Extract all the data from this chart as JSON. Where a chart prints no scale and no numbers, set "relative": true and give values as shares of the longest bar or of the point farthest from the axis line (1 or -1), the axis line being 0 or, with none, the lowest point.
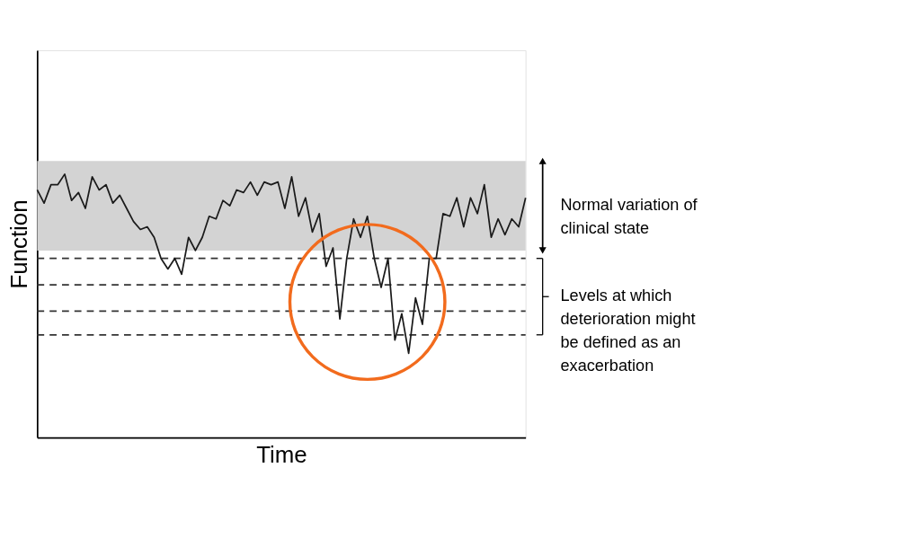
{
  "chart_data": {
    "type": "line",
    "relative": true,
    "xlabel": "Time",
    "ylabel": "Function",
    "grid": false,
    "categories": [
      null,
      null,
      null,
      null,
      null,
      null,
      null,
      null,
      null,
      null,
      null,
      null,
      null,
      null,
      null,
      null,
      null,
      null,
      null,
      null,
      null,
      null,
      null,
      null,
      null,
      null,
      null,
      null,
      null,
      null,
      null,
      null,
      null,
      null,
      null,
      null,
      null,
      null,
      null,
      null,
      null,
      null,
      null,
      null,
      null,
      null,
      null,
      null,
      null,
      null,
      null,
      null,
      null,
      null,
      null,
      null,
      null,
      null,
      null,
      null,
      null,
      null,
      null,
      null,
      null,
      null,
      null,
      null,
      null,
      null,
      null,
      null
    ],
    "series": [
      {
        "color": "#1a1a1a",
        "values": [
          0.94,
          0.89,
          0.96,
          0.96,
          1.0,
          0.9,
          0.93,
          0.87,
          0.99,
          0.94,
          0.96,
          0.89,
          0.92,
          0.87,
          0.82,
          0.79,
          0.8,
          0.76,
          0.68,
          0.64,
          0.68,
          0.62,
          0.76,
          0.71,
          0.76,
          0.84,
          0.83,
          0.9,
          0.88,
          0.94,
          0.93,
          0.97,
          0.92,
          0.97,
          0.96,
          0.97,
          0.87,
          0.99,
          0.84,
          0.91,
          0.78,
          0.85,
          0.65,
          0.72,
          0.45,
          0.68,
          0.83,
          0.76,
          0.84,
          0.68,
          0.57,
          0.68,
          0.37,
          0.47,
          0.32,
          0.53,
          0.43,
          0.68,
          0.68,
          0.85,
          0.84,
          0.91,
          0.8,
          0.91,
          0.85,
          0.96,
          0.76,
          0.83,
          0.77,
          0.83,
          0.8,
          0.91
        ]
      }
    ],
    "bands": [
      {
        "axis": "y",
        "from": 0.71,
        "to": 1.05,
        "color": "#d3d3d3",
        "label": "Normal variation of clinical state"
      }
    ],
    "ref_lines": [
      {
        "axis": "y",
        "value": 0.68,
        "color": "#333333",
        "line_style": "dashed"
      },
      {
        "axis": "y",
        "value": 0.58,
        "color": "#333333",
        "line_style": "dashed"
      },
      {
        "axis": "y",
        "value": 0.48,
        "color": "#333333",
        "line_style": "dashed"
      },
      {
        "axis": "y",
        "value": 0.39,
        "color": "#333333",
        "line_style": "dashed"
      }
    ],
    "annotations": [
      "Levels at which deterioration might be defined as an exacerbation"
    ]
  }
}
